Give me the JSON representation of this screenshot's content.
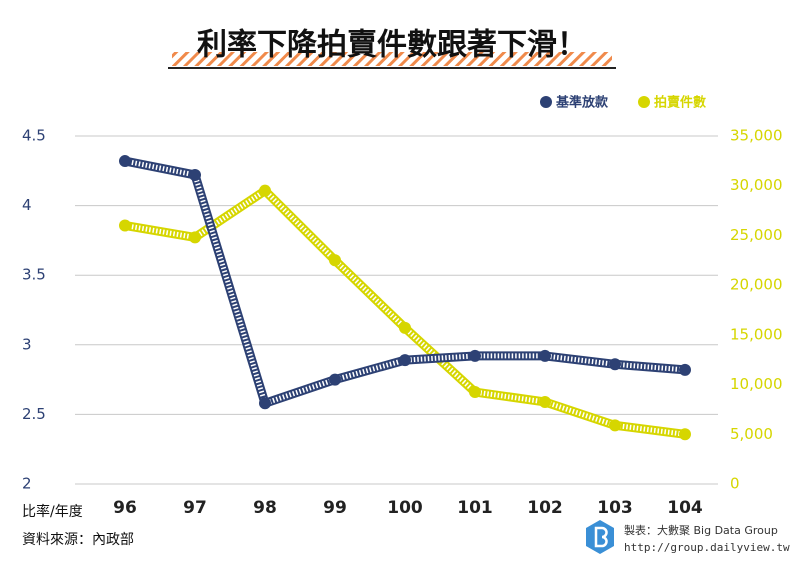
{
  "chart_data": {
    "type": "line",
    "title": "利率下降拍賣件數跟著下滑！",
    "x_label": "比率/年度",
    "source": "資料來源：內政部",
    "credit": "製表：大數聚 Big Data Group",
    "url": "http://group.dailyview.tw",
    "categories": [
      "96",
      "97",
      "98",
      "99",
      "100",
      "101",
      "102",
      "103",
      "104"
    ],
    "series": [
      {
        "name": "基準放款",
        "color": "#2d4174",
        "values": [
          4.32,
          4.22,
          2.58,
          2.75,
          2.89,
          2.92,
          2.92,
          2.86,
          2.82
        ]
      },
      {
        "name": "拍賣件數",
        "color": "#d6d600",
        "axis": "y2",
        "values": [
          26000,
          24800,
          29500,
          22500,
          15700,
          9250,
          8250,
          5900,
          5000
        ]
      }
    ],
    "ylim": [
      2,
      4.5
    ],
    "yticks": [
      2,
      2.5,
      3,
      3.5,
      4,
      4.5
    ],
    "y2lim": [
      0,
      35000
    ],
    "y2ticks": [
      0,
      {
        "value": 5000,
        "label": "5,000"
      },
      {
        "value": 10000,
        "label": "10,000"
      },
      {
        "value": 15000,
        "label": "15,000"
      },
      {
        "value": 20000,
        "label": "20,000"
      },
      {
        "value": 25000,
        "label": "25,000"
      },
      {
        "value": 30000,
        "label": "30,000"
      },
      {
        "value": 35000,
        "label": "35,000"
      }
    ],
    "grid": true,
    "legend": "top-right"
  }
}
